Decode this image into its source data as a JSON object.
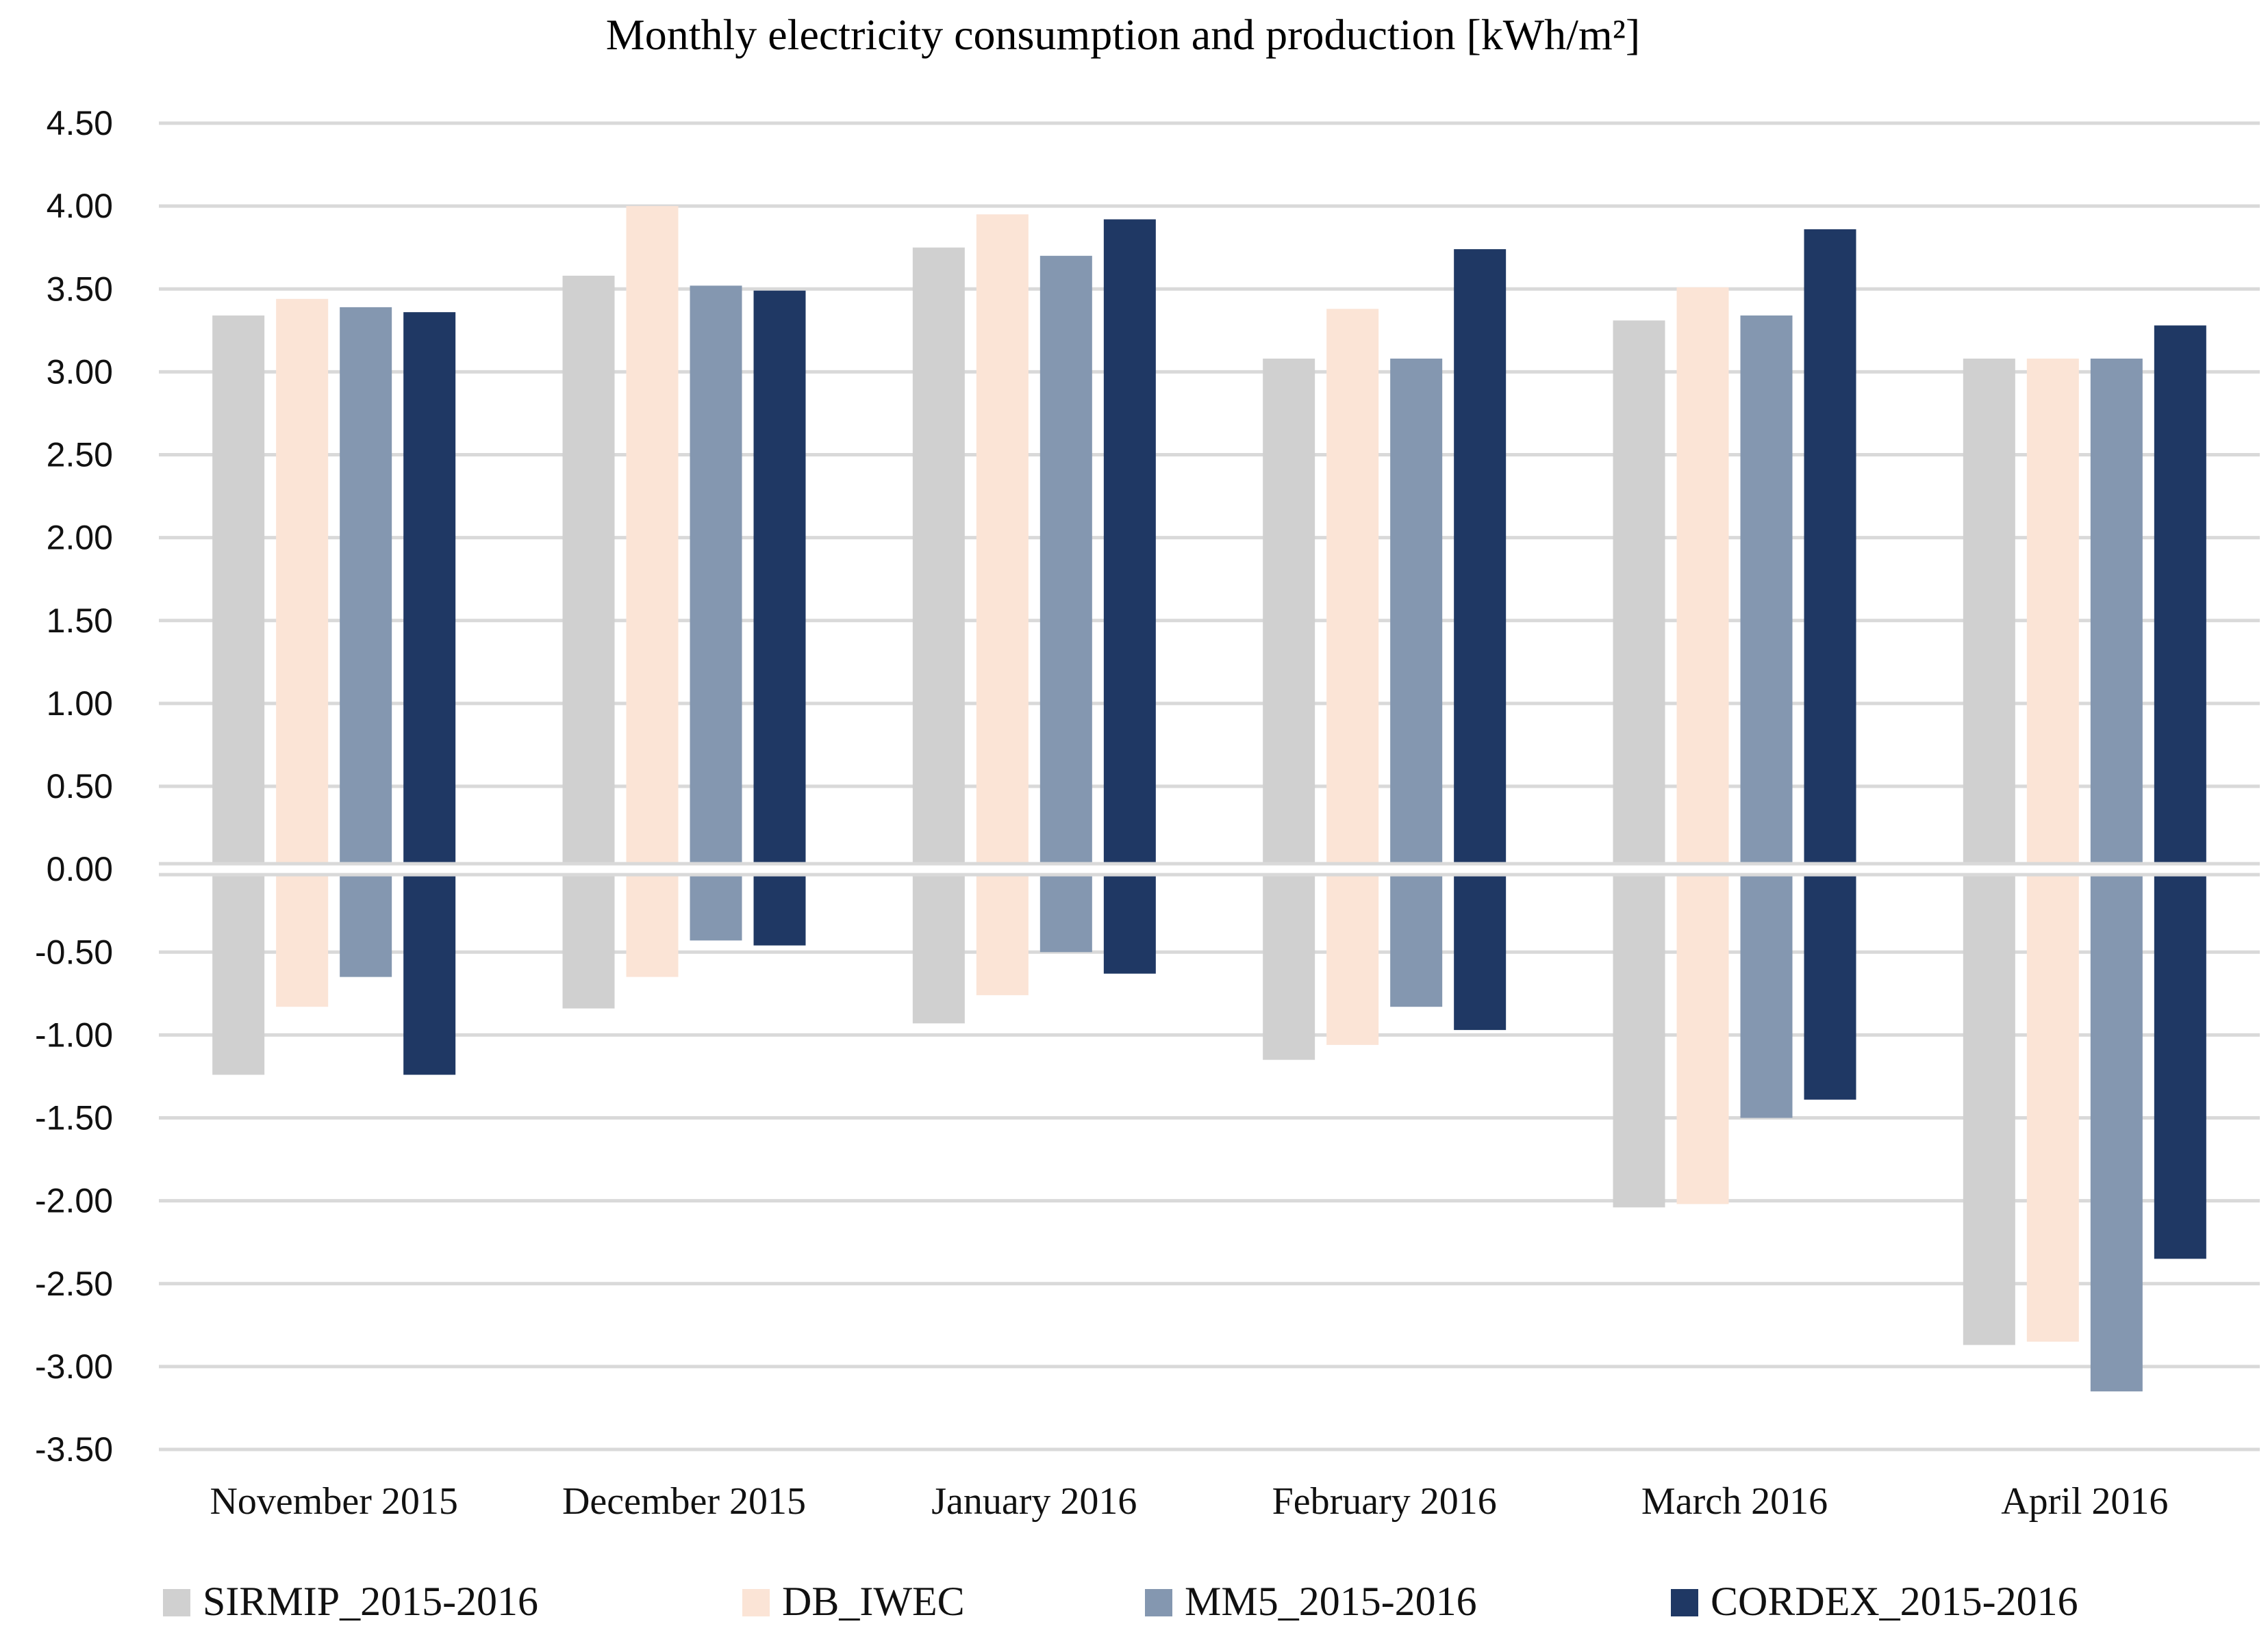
{
  "chart_data": {
    "type": "bar",
    "title": "Monthly electricity consumption and production  [kWh/m²]",
    "xlabel": "",
    "ylabel": "",
    "ylim": [
      -3.5,
      4.5
    ],
    "y_ticks": [
      "4.50",
      "4.00",
      "3.50",
      "3.00",
      "2.50",
      "2.00",
      "1.50",
      "1.00",
      "0.50",
      "0.00",
      "-0.50",
      "-1.00",
      "-1.50",
      "-2.00",
      "-2.50",
      "-3.00",
      "-3.50"
    ],
    "grid": true,
    "legend_position": "bottom",
    "categories": [
      "November 2015",
      "December 2015",
      "January 2016",
      "February 2016",
      "March 2016",
      "April 2016"
    ],
    "series": [
      {
        "name": "SIRMIP_2015-2016",
        "color": "#d0d0d0",
        "positive": [
          3.34,
          3.58,
          3.75,
          3.08,
          3.31,
          3.08
        ],
        "negative": [
          -1.24,
          -0.84,
          -0.93,
          -1.15,
          -2.04,
          -2.87
        ]
      },
      {
        "name": "DB_IWEC",
        "color": "#fbe4d6",
        "positive": [
          3.44,
          4.0,
          3.95,
          3.38,
          3.51,
          3.08
        ],
        "negative": [
          -0.83,
          -0.65,
          -0.76,
          -1.06,
          -2.02,
          -2.85
        ]
      },
      {
        "name": "MM5_2015-2016",
        "color": "#8497b0",
        "positive": [
          3.39,
          3.52,
          3.7,
          3.08,
          3.34,
          3.08
        ],
        "negative": [
          -0.65,
          -0.43,
          -0.5,
          -0.83,
          -1.5,
          -3.15
        ]
      },
      {
        "name": "CORDEX_2015-2016",
        "color": "#1f3864",
        "positive": [
          3.36,
          3.49,
          3.92,
          3.74,
          3.86,
          3.28
        ],
        "negative": [
          -1.24,
          -0.46,
          -0.63,
          -0.97,
          -1.39,
          -2.35
        ]
      }
    ]
  }
}
